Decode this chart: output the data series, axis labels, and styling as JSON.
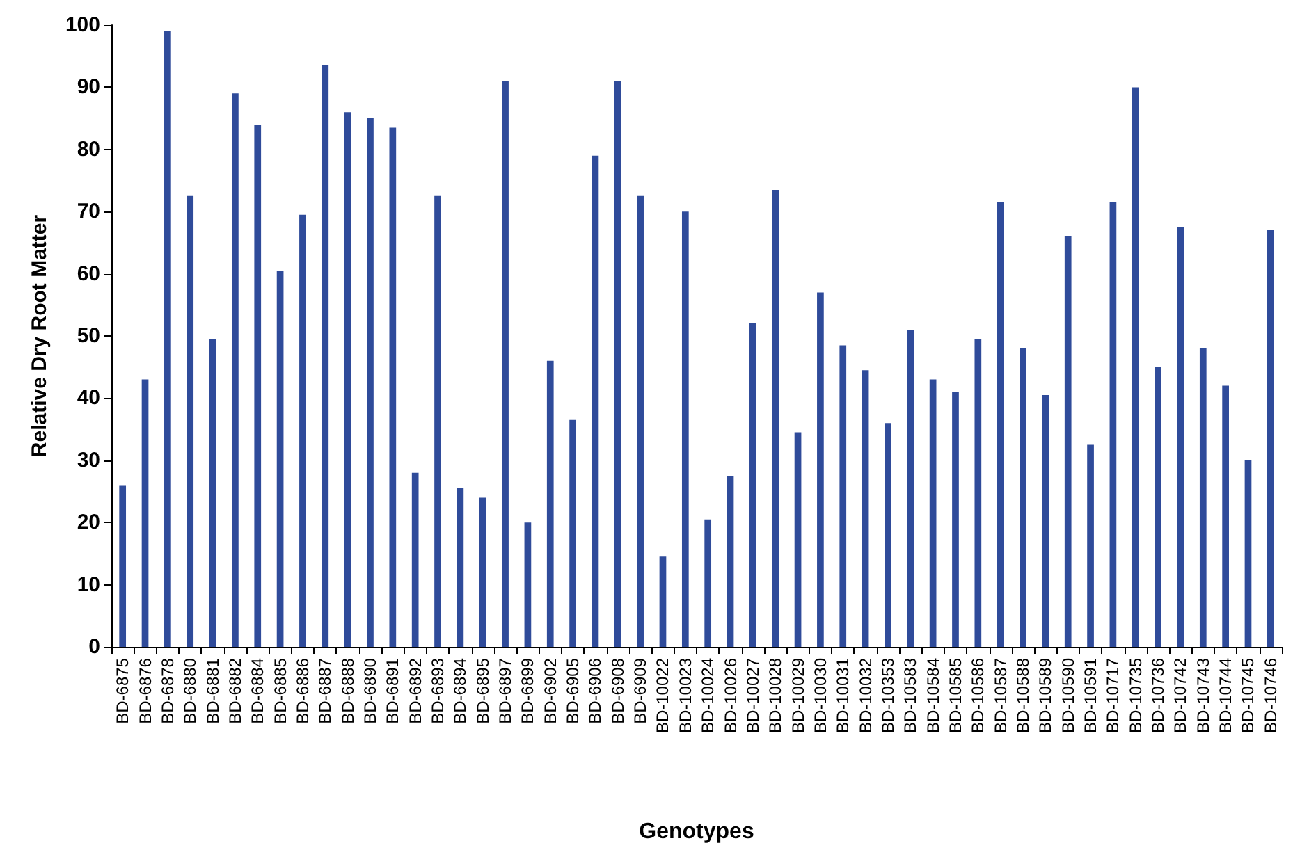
{
  "chart_data": {
    "type": "bar",
    "xlabel": "Genotypes",
    "ylabel": "Relative Dry Root Matter",
    "categories": [
      "BD-6875",
      "BD-6876",
      "BD-6878",
      "BD-6880",
      "BD-6881",
      "BD-6882",
      "BD-6884",
      "BD-6885",
      "BD-6886",
      "BD-6887",
      "BD-6888",
      "BD-6890",
      "BD-6891",
      "BD-6892",
      "BD-6893",
      "BD-6894",
      "BD-6895",
      "BD-6897",
      "BD-6899",
      "BD-6902",
      "BD-6905",
      "BD-6906",
      "BD-6908",
      "BD-6909",
      "BD-10022",
      "BD-10023",
      "BD-10024",
      "BD-10026",
      "BD-10027",
      "BD-10028",
      "BD-10029",
      "BD-10030",
      "BD-10031",
      "BD-10032",
      "BD-10353",
      "BD-10583",
      "BD-10584",
      "BD-10585",
      "BD-10586",
      "BD-10587",
      "BD-10588",
      "BD-10589",
      "BD-10590",
      "BD-10591",
      "BD-10717",
      "BD-10735",
      "BD-10736",
      "BD-10742",
      "BD-10743",
      "BD-10744",
      "BD-10745",
      "BD-10746"
    ],
    "values": [
      26,
      43,
      99,
      72.5,
      49.5,
      89,
      84,
      60.5,
      69.5,
      93.5,
      86,
      85,
      83.5,
      28,
      72.5,
      25.5,
      24,
      91,
      20,
      46,
      36.5,
      79,
      91,
      72.5,
      14.5,
      70,
      20.5,
      27.5,
      52,
      73.5,
      34.5,
      57,
      48.5,
      44.5,
      36,
      51,
      43,
      41,
      49.5,
      71.5,
      48,
      40.5,
      66,
      32.5,
      71.5,
      90,
      45,
      67.5,
      48,
      42,
      30,
      67
    ],
    "color": "#2f4b9a",
    "ylim": [
      0,
      100
    ],
    "yticks": [
      0,
      10,
      20,
      30,
      40,
      50,
      60,
      70,
      80,
      90,
      100
    ],
    "grid": false
  }
}
